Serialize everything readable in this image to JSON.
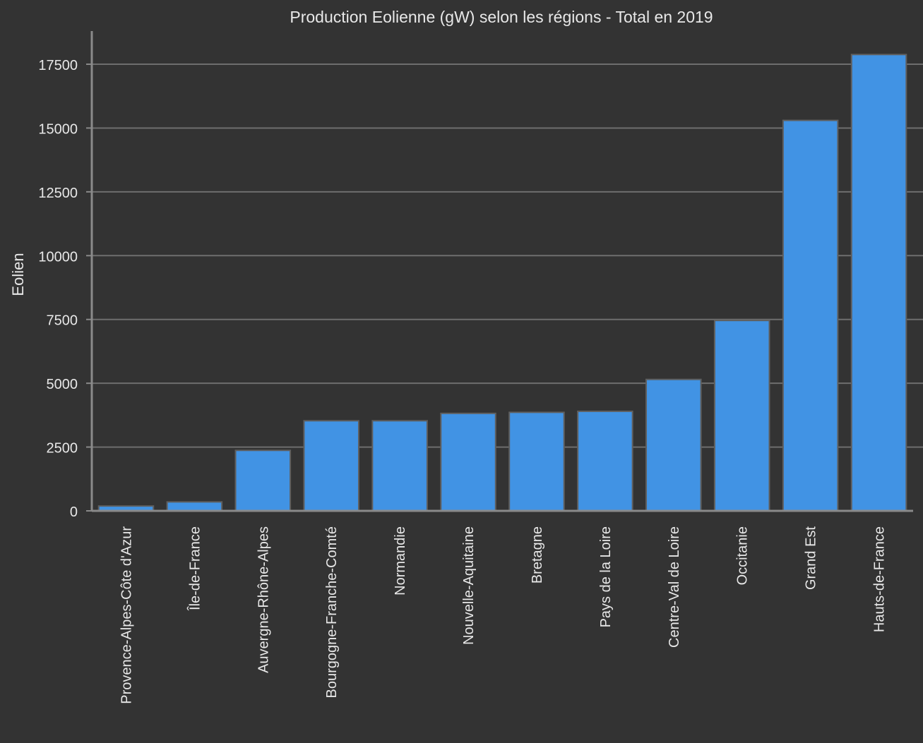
{
  "chart_data": {
    "type": "bar",
    "title": "Production Eolienne (gW) selon les régions - Total en 2019",
    "xlabel": "",
    "ylabel": "Eolien",
    "ylim": [
      0,
      18800
    ],
    "yticks": [
      0,
      2500,
      5000,
      7500,
      10000,
      12500,
      15000,
      17500
    ],
    "grid": true,
    "categories": [
      "Provence-Alpes-Côte d'Azur",
      "Île-de-France",
      "Auvergne-Rhône-Alpes",
      "Bourgogne-Franche-Comté",
      "Normandie",
      "Nouvelle-Aquitaine",
      "Bretagne",
      "Pays de la Loire",
      "Centre-Val de Loire",
      "Occitanie",
      "Grand Est",
      "Hauts-de-France"
    ],
    "values": [
      190,
      350,
      2370,
      3530,
      3530,
      3820,
      3860,
      3900,
      5150,
      7460,
      15300,
      17880
    ],
    "colors": {
      "bar": "#4193e4",
      "bar_edge": "#5f5f5f",
      "grid": "#6e6e6e",
      "axis": "#8a8a8a",
      "background": "#333333",
      "text": "#e8e8e8"
    }
  }
}
